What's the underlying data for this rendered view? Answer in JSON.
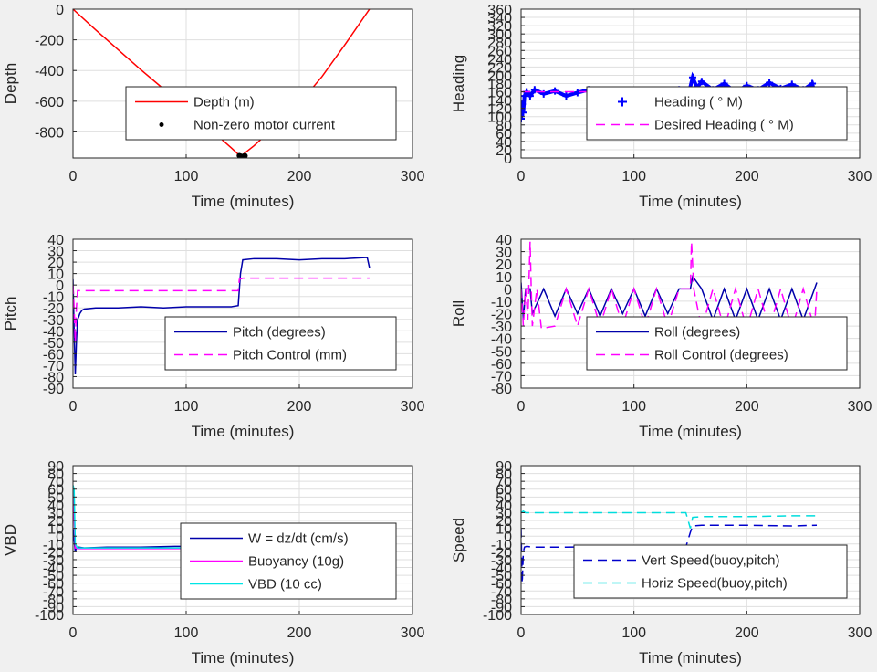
{
  "figure": {
    "background": "#f0f0f0",
    "panel_background": "#ffffff",
    "grid_color": "#dfdfdf",
    "axis_color": "#262626"
  },
  "chart_data": [
    {
      "type": "line",
      "xlabel": "Time (minutes)",
      "ylabel": "Depth",
      "xlim": [
        0,
        300
      ],
      "ylim": [
        -970,
        0
      ],
      "xticks": [
        0,
        100,
        200,
        300
      ],
      "yticks": [
        0,
        -200,
        -400,
        -600,
        -800
      ],
      "grid": true,
      "legend_position": "center-right",
      "series": [
        {
          "name": "Depth (m)",
          "color": "#ff0000",
          "style": "solid",
          "x": [
            0,
            20,
            40,
            60,
            80,
            100,
            120,
            140,
            148,
            160,
            180,
            200,
            220,
            240,
            262
          ],
          "y": [
            0,
            -135,
            -265,
            -395,
            -520,
            -645,
            -775,
            -905,
            -960,
            -890,
            -755,
            -615,
            -440,
            -235,
            0
          ]
        },
        {
          "name": "Non-zero motor current",
          "color": "#000000",
          "style": "dots",
          "x": [
            147,
            148,
            149,
            150,
            151,
            152
          ],
          "y": [
            -955,
            -958,
            -960,
            -960,
            -958,
            -956
          ]
        }
      ]
    },
    {
      "type": "line",
      "xlabel": "Time (minutes)",
      "ylabel": "Heading",
      "xlim": [
        0,
        300
      ],
      "ylim": [
        0,
        360
      ],
      "xticks": [
        0,
        100,
        200,
        300
      ],
      "yticks": [
        0,
        20,
        40,
        60,
        80,
        100,
        120,
        140,
        160,
        180,
        200,
        220,
        240,
        260,
        280,
        300,
        320,
        340,
        360
      ],
      "grid": true,
      "legend_position": "bottom-right",
      "series": [
        {
          "name": "Heading (   ° M)",
          "color": "#0000ff",
          "style": "plus",
          "x": [
            0,
            1,
            2,
            3,
            5,
            8,
            12,
            20,
            30,
            40,
            50,
            60,
            70,
            80,
            90,
            100,
            110,
            120,
            130,
            140,
            148,
            152,
            156,
            160,
            170,
            180,
            190,
            200,
            210,
            220,
            230,
            240,
            250,
            258,
            262
          ],
          "y": [
            95,
            130,
            110,
            150,
            160,
            150,
            165,
            155,
            162,
            150,
            158,
            165,
            150,
            160,
            155,
            162,
            150,
            158,
            155,
            165,
            150,
            195,
            170,
            185,
            165,
            180,
            160,
            175,
            165,
            182,
            168,
            178,
            165,
            180,
            135
          ]
        },
        {
          "name": "Desired Heading (     ° M)",
          "color": "#ff00ff",
          "style": "dash",
          "x": [
            0,
            262
          ],
          "y": [
            160,
            160
          ]
        }
      ]
    },
    {
      "type": "line",
      "xlabel": "Time (minutes)",
      "ylabel": "Pitch",
      "xlim": [
        0,
        300
      ],
      "ylim": [
        -90,
        40
      ],
      "xticks": [
        0,
        100,
        200,
        300
      ],
      "yticks": [
        40,
        30,
        20,
        10,
        0,
        -10,
        -20,
        -30,
        -40,
        -50,
        -60,
        -70,
        -80,
        -90
      ],
      "grid": true,
      "legend_position": "center-right",
      "series": [
        {
          "name": "Pitch (degrees)",
          "color": "#0000aa",
          "style": "solid",
          "x": [
            0,
            1,
            2,
            3,
            4,
            5,
            6,
            8,
            10,
            20,
            40,
            60,
            80,
            100,
            120,
            140,
            146,
            148,
            150,
            160,
            180,
            200,
            220,
            240,
            260,
            262
          ],
          "y": [
            5,
            -40,
            -78,
            -50,
            -30,
            -28,
            -25,
            -22,
            -21,
            -20,
            -20,
            -19,
            -20,
            -19,
            -19,
            -19,
            -18,
            10,
            22,
            23,
            23,
            22,
            23,
            23,
            24,
            15
          ]
        },
        {
          "name": "Pitch Control (mm)",
          "color": "#ff00ff",
          "style": "dash",
          "x": [
            0,
            1,
            2,
            3,
            4,
            6,
            146,
            147,
            150,
            262
          ],
          "y": [
            0,
            -20,
            -50,
            -20,
            -5,
            -5,
            -5,
            5,
            6,
            6
          ]
        }
      ]
    },
    {
      "type": "line",
      "xlabel": "Time (minutes)",
      "ylabel": "Roll",
      "xlim": [
        0,
        300
      ],
      "ylim": [
        -80,
        40
      ],
      "xticks": [
        0,
        100,
        200,
        300
      ],
      "yticks": [
        40,
        30,
        20,
        10,
        0,
        -10,
        -20,
        -30,
        -40,
        -50,
        -60,
        -70,
        -80
      ],
      "grid": true,
      "legend_position": "bottom-right",
      "series": [
        {
          "name": "Roll (degrees)",
          "color": "#0000aa",
          "style": "solid",
          "x": [
            0,
            2,
            4,
            8,
            10,
            20,
            30,
            40,
            50,
            60,
            70,
            80,
            90,
            100,
            110,
            120,
            130,
            140,
            150,
            152,
            160,
            170,
            180,
            190,
            200,
            210,
            220,
            230,
            240,
            250,
            260,
            262
          ],
          "y": [
            5,
            -25,
            0,
            0,
            -20,
            0,
            -22,
            0,
            -20,
            0,
            -22,
            0,
            -20,
            0,
            -22,
            0,
            -20,
            0,
            0,
            10,
            0,
            -25,
            0,
            -25,
            0,
            -25,
            0,
            -25,
            0,
            -25,
            0,
            5
          ]
        },
        {
          "name": "Roll Control (degrees)",
          "color": "#ff00ff",
          "style": "dash",
          "x": [
            0,
            2,
            4,
            6,
            8,
            9,
            10,
            14,
            18,
            30,
            40,
            50,
            60,
            70,
            80,
            90,
            100,
            110,
            120,
            130,
            140,
            150,
            151,
            153,
            160,
            170,
            180,
            190,
            200,
            210,
            220,
            230,
            240,
            250,
            260,
            262
          ],
          "y": [
            0,
            -30,
            0,
            -25,
            38,
            0,
            -30,
            0,
            -32,
            -30,
            0,
            -30,
            0,
            -30,
            0,
            -30,
            0,
            -30,
            0,
            -30,
            0,
            0,
            38,
            0,
            -32,
            0,
            -32,
            0,
            -32,
            0,
            -32,
            0,
            -32,
            0,
            -32,
            0
          ]
        }
      ]
    },
    {
      "type": "line",
      "xlabel": "Time (minutes)",
      "ylabel": "VBD",
      "xlim": [
        0,
        300
      ],
      "ylim": [
        -100,
        90
      ],
      "xticks": [
        0,
        100,
        200,
        300
      ],
      "yticks": [
        90,
        80,
        70,
        60,
        50,
        40,
        30,
        20,
        10,
        0,
        -10,
        -20,
        -30,
        -40,
        -50,
        -60,
        -70,
        -80,
        -90,
        -100
      ],
      "grid": true,
      "legend_position": "center-right",
      "series": [
        {
          "name": "W = dz/dt (cm/s)",
          "color": "#0000aa",
          "style": "solid",
          "x": [
            0,
            1,
            2,
            3,
            5,
            10,
            30,
            60,
            90,
            120,
            146,
            148,
            150,
            160,
            180,
            200,
            220,
            240,
            260,
            262
          ],
          "y": [
            10,
            -5,
            -20,
            -15,
            -14,
            -15,
            -14,
            -14,
            -13,
            -13,
            -12,
            5,
            13,
            14,
            14,
            15,
            14,
            15,
            16,
            13
          ]
        },
        {
          "name": "Buoyancy (10g)",
          "color": "#ff00ff",
          "style": "solid",
          "x": [
            0,
            2,
            4,
            146,
            148,
            262
          ],
          "y": [
            60,
            -15,
            -16,
            -16,
            13,
            13
          ]
        },
        {
          "name": "VBD (10 cc)",
          "color": "#00e5e5",
          "style": "solid",
          "x": [
            0,
            1,
            2,
            4,
            146,
            148,
            262
          ],
          "y": [
            65,
            60,
            -10,
            -15,
            -15,
            14,
            14
          ]
        }
      ]
    },
    {
      "type": "line",
      "xlabel": "Time (minutes)",
      "ylabel": "Speed",
      "xlim": [
        0,
        300
      ],
      "ylim": [
        -100,
        90
      ],
      "xticks": [
        0,
        100,
        200,
        300
      ],
      "yticks": [
        90,
        80,
        70,
        60,
        50,
        40,
        30,
        20,
        10,
        0,
        -10,
        -20,
        -30,
        -40,
        -50,
        -60,
        -70,
        -80,
        -90,
        -100
      ],
      "grid": true,
      "legend_position": "bottom-right",
      "series": [
        {
          "name": "Vert Speed(buoy,pitch)",
          "color": "#0000cc",
          "style": "dash",
          "x": [
            0,
            1,
            2,
            3,
            5,
            10,
            40,
            80,
            120,
            146,
            150,
            152,
            160,
            200,
            240,
            262
          ],
          "y": [
            10,
            -60,
            -20,
            -14,
            -13,
            -14,
            -14,
            -13,
            -14,
            -14,
            5,
            13,
            14,
            14,
            13,
            14
          ]
        },
        {
          "name": "Horiz Speed(buoy,pitch)",
          "color": "#00dddd",
          "style": "dash",
          "x": [
            0,
            2,
            4,
            10,
            40,
            80,
            120,
            146,
            150,
            152,
            160,
            200,
            240,
            262
          ],
          "y": [
            30,
            32,
            30,
            30,
            30,
            30,
            30,
            30,
            10,
            24,
            25,
            25,
            26,
            26
          ]
        }
      ]
    }
  ]
}
